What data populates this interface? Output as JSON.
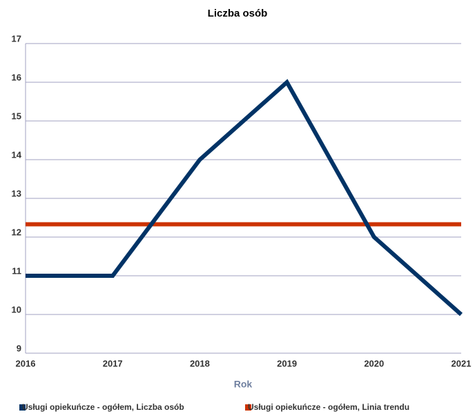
{
  "chart_data": {
    "type": "line",
    "title": "Liczba osób",
    "x_label": "Rok",
    "x": [
      2016,
      2017,
      2018,
      2019,
      2020,
      2021
    ],
    "series": [
      {
        "name": "Usługi opiekuńcze - ogółem, Liczba osób",
        "color": "#003366",
        "values": [
          11,
          11,
          14,
          16,
          12,
          10
        ]
      },
      {
        "name": "Usługi opiekuńcze - ogółem, Linia trendu",
        "color": "#cc3300",
        "values": [
          12.33,
          12.33,
          12.33,
          12.33,
          12.33,
          12.33
        ]
      }
    ],
    "xlim": [
      2016,
      2021
    ],
    "xticks": [
      2016,
      2017,
      2018,
      2019,
      2020,
      2021
    ],
    "ylim": [
      9,
      17
    ],
    "yticks": [
      9,
      10,
      11,
      12,
      13,
      14,
      15,
      16,
      17
    ],
    "grid": true
  }
}
